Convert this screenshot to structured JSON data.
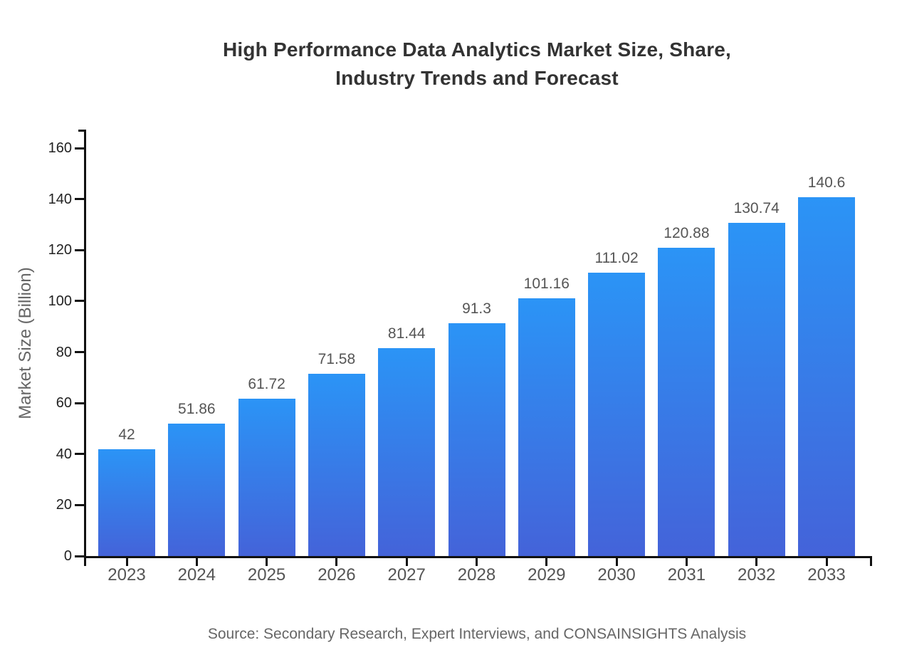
{
  "title": {
    "line1": "High Performance Data Analytics Market Size, Share,",
    "line2": "Industry Trends and Forecast"
  },
  "source": "Source: Secondary Research, Expert Interviews, and CONSAINSIGHTS Analysis",
  "colors": {
    "bar_gradient_top": "#2B94F6",
    "bar_gradient_bottom": "#4463D9",
    "axis": "#111111",
    "title_text": "#333333",
    "ytick_text": "#222222",
    "xtick_text": "#555555",
    "value_label_text": "#555555",
    "muted_text": "#666666"
  },
  "chart_data": {
    "type": "bar",
    "title": "High Performance Data Analytics Market Size, Share, Industry Trends and Forecast",
    "categories": [
      "2023",
      "2024",
      "2025",
      "2026",
      "2027",
      "2028",
      "2029",
      "2030",
      "2031",
      "2032",
      "2033"
    ],
    "values": [
      42,
      51.86,
      61.72,
      71.58,
      81.44,
      91.3,
      101.16,
      111.02,
      120.88,
      130.74,
      140.6
    ],
    "xlabel": "",
    "ylabel": "Market Size (Billion)",
    "ylim": [
      0,
      170
    ],
    "yticks": [
      0,
      20,
      40,
      60,
      80,
      100,
      120,
      140,
      160
    ],
    "grid": false,
    "legend": false,
    "bar_style": "vertical gradient, light azure top to royal blue bottom",
    "annotation": "value labels above each bar"
  }
}
